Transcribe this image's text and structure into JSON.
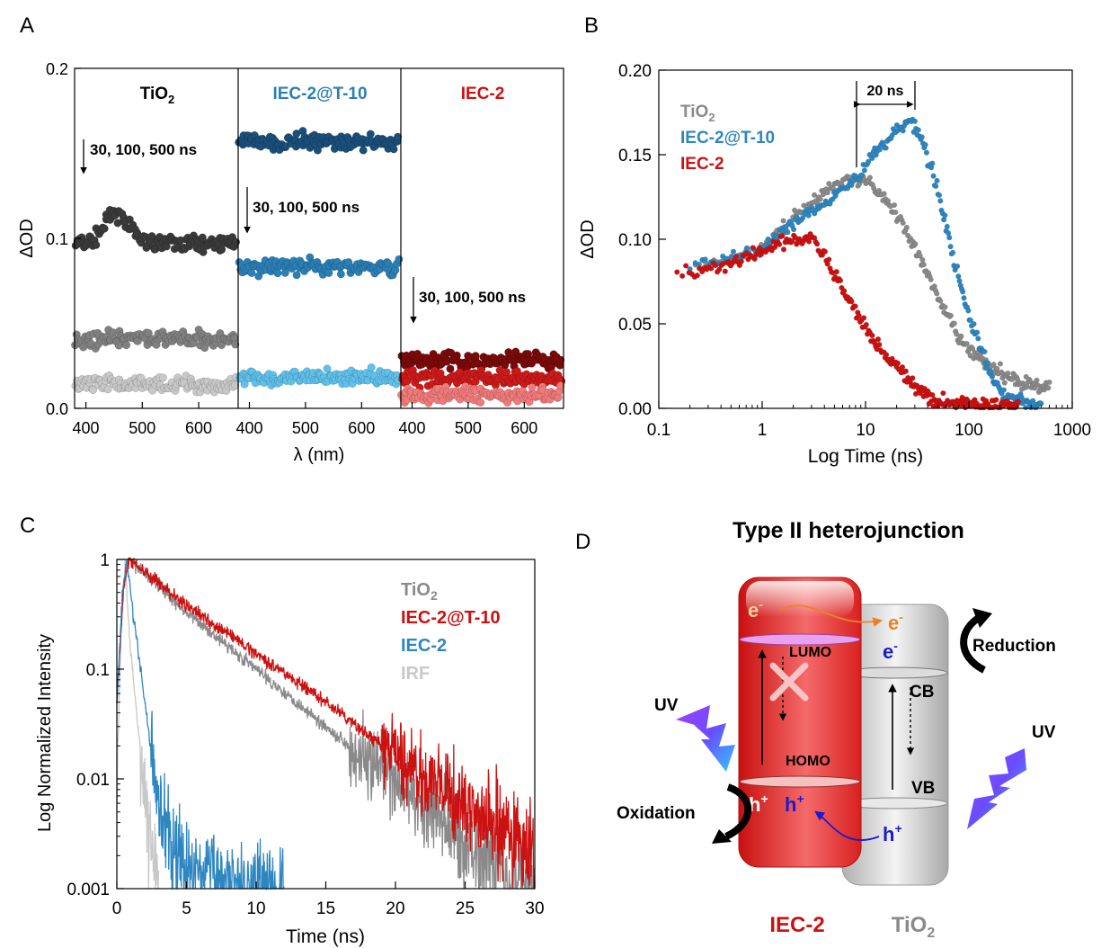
{
  "panel_letters": {
    "a": "A",
    "b": "B",
    "c": "C",
    "d": "D"
  },
  "colors": {
    "tio2_dark": "#3a3a3a",
    "tio2_mid": "#808080",
    "tio2_light": "#c8c8c8",
    "iec_t10_dark": "#1a4f7a",
    "iec_t10_mid": "#2a7fb5",
    "iec_t10_light": "#5fc0ea",
    "iec2_dark": "#7a0a0a",
    "iec2_mid": "#cc1a1a",
    "iec2_light": "#f07a7a",
    "gray": "#8a8a8a",
    "blue": "#2e86c1",
    "red": "#cc1111",
    "irf": "#c8c8c8"
  },
  "chart_data": [
    {
      "id": "A",
      "type": "scatter",
      "xlabel": "λ (nm)",
      "ylabel": "ΔOD",
      "ylim": [
        0,
        0.2
      ],
      "yticks": [
        "0.0",
        "0.1",
        "0.2"
      ],
      "segments": [
        {
          "label": "TiO",
          "label_sub": "2",
          "annotation": "30, 100, 500 ns",
          "xlim": [
            380,
            670
          ],
          "xticks": [
            "400",
            "500",
            "600"
          ],
          "series": [
            {
              "delay": "30 ns",
              "color": "#3a3a3a",
              "level": 0.097
            },
            {
              "delay": "100 ns",
              "color": "#808080",
              "level": 0.041
            },
            {
              "delay": "500 ns",
              "color": "#c8c8c8",
              "level": 0.014
            }
          ]
        },
        {
          "label": "IEC-2@T-10",
          "label_sub": "",
          "annotation": "30, 100, 500 ns",
          "xlim": [
            380,
            670
          ],
          "xticks": [
            "400",
            "500",
            "600"
          ],
          "series": [
            {
              "delay": "30 ns",
              "color": "#1a4f7a",
              "level": 0.157
            },
            {
              "delay": "100 ns",
              "color": "#2a7fb5",
              "level": 0.083
            },
            {
              "delay": "500 ns",
              "color": "#5fc0ea",
              "level": 0.018
            }
          ]
        },
        {
          "label": "IEC-2",
          "label_sub": "",
          "annotation": "30, 100, 500 ns",
          "xlim": [
            380,
            670
          ],
          "xticks": [
            "400",
            "500",
            "600"
          ],
          "series": [
            {
              "delay": "30 ns",
              "color": "#7a0a0a",
              "level": 0.028
            },
            {
              "delay": "100 ns",
              "color": "#cc1a1a",
              "level": 0.018
            },
            {
              "delay": "500 ns",
              "color": "#f07a7a",
              "level": 0.008
            }
          ]
        }
      ]
    },
    {
      "id": "B",
      "type": "scatter",
      "xscale": "log",
      "xlim": [
        0.1,
        1000
      ],
      "xticks": [
        "0.1",
        "1",
        "10",
        "100",
        "1000"
      ],
      "ylim": [
        0,
        0.2
      ],
      "yticks": [
        "0.00",
        "0.05",
        "0.10",
        "0.15",
        "0.20"
      ],
      "xlabel": "Log Time (ns)",
      "ylabel": "ΔOD",
      "annotation": "20 ns",
      "annotation_range": [
        8,
        28
      ],
      "legend": [
        {
          "name": "TiO",
          "sub": "2",
          "color": "#8a8a8a"
        },
        {
          "name": "IEC-2@T-10",
          "sub": "",
          "color": "#2e86c1"
        },
        {
          "name": "IEC-2",
          "sub": "",
          "color": "#cc1111"
        }
      ],
      "series": [
        {
          "name": "TiO2",
          "color": "#8a8a8a",
          "points": [
            [
              0.2,
              0.083
            ],
            [
              0.5,
              0.088
            ],
            [
              1,
              0.095
            ],
            [
              2,
              0.112
            ],
            [
              4,
              0.128
            ],
            [
              6,
              0.134
            ],
            [
              8,
              0.136
            ],
            [
              10,
              0.135
            ],
            [
              15,
              0.125
            ],
            [
              20,
              0.115
            ],
            [
              30,
              0.095
            ],
            [
              50,
              0.065
            ],
            [
              80,
              0.042
            ],
            [
              100,
              0.035
            ],
            [
              150,
              0.025
            ],
            [
              300,
              0.016
            ],
            [
              600,
              0.012
            ]
          ]
        },
        {
          "name": "IEC-2@T-10",
          "color": "#2e86c1",
          "points": [
            [
              0.2,
              0.084
            ],
            [
              0.5,
              0.088
            ],
            [
              1,
              0.095
            ],
            [
              2,
              0.11
            ],
            [
              4,
              0.122
            ],
            [
              6,
              0.13
            ],
            [
              8,
              0.135
            ],
            [
              12,
              0.15
            ],
            [
              20,
              0.165
            ],
            [
              28,
              0.17
            ],
            [
              35,
              0.16
            ],
            [
              50,
              0.13
            ],
            [
              70,
              0.09
            ],
            [
              100,
              0.055
            ],
            [
              150,
              0.025
            ],
            [
              200,
              0.01
            ],
            [
              300,
              0.004
            ],
            [
              500,
              0.002
            ]
          ]
        },
        {
          "name": "IEC-2",
          "color": "#cc1111",
          "points": [
            [
              0.15,
              0.08
            ],
            [
              0.3,
              0.082
            ],
            [
              0.6,
              0.087
            ],
            [
              1,
              0.093
            ],
            [
              2,
              0.1
            ],
            [
              3,
              0.1
            ],
            [
              4,
              0.09
            ],
            [
              6,
              0.07
            ],
            [
              8,
              0.058
            ],
            [
              12,
              0.04
            ],
            [
              20,
              0.025
            ],
            [
              30,
              0.012
            ],
            [
              50,
              0.004
            ],
            [
              80,
              0.003
            ],
            [
              150,
              0.002
            ],
            [
              300,
              0.001
            ]
          ]
        }
      ]
    },
    {
      "id": "C",
      "type": "line",
      "yscale": "log",
      "xlim": [
        0,
        30
      ],
      "ylim": [
        0.001,
        1
      ],
      "xticks": [
        "0",
        "5",
        "10",
        "15",
        "20",
        "25",
        "30"
      ],
      "yticks": [
        "0.001",
        "0.01",
        "0.1",
        "1"
      ],
      "xlabel": "Time (ns)",
      "ylabel": "Log Normalized Intensity",
      "legend": [
        {
          "name": "TiO",
          "sub": "2",
          "color": "#8a8a8a"
        },
        {
          "name": "IEC-2@T-10",
          "sub": "",
          "color": "#cc1111"
        },
        {
          "name": "IEC-2",
          "sub": "",
          "color": "#2e86c1"
        },
        {
          "name": "IRF",
          "sub": "",
          "color": "#c8c8c8"
        }
      ],
      "series": [
        {
          "name": "TiO2",
          "color": "#8a8a8a",
          "points": [
            [
              0,
              0.05
            ],
            [
              0.5,
              0.6
            ],
            [
              0.9,
              1
            ],
            [
              5,
              0.33
            ],
            [
              10,
              0.1
            ],
            [
              15,
              0.03
            ],
            [
              20,
              0.009
            ],
            [
              25,
              0.0028
            ],
            [
              30,
              0.001
            ]
          ]
        },
        {
          "name": "IEC-2@T-10",
          "color": "#cc1111",
          "points": [
            [
              0,
              0.05
            ],
            [
              0.5,
              0.6
            ],
            [
              0.9,
              1
            ],
            [
              5,
              0.38
            ],
            [
              10,
              0.14
            ],
            [
              15,
              0.05
            ],
            [
              20,
              0.016
            ],
            [
              25,
              0.0056
            ],
            [
              30,
              0.002
            ]
          ]
        },
        {
          "name": "IEC-2",
          "color": "#2e86c1",
          "points": [
            [
              0,
              0.05
            ],
            [
              0.4,
              0.5
            ],
            [
              0.7,
              1
            ],
            [
              1.2,
              0.3
            ],
            [
              2,
              0.05
            ],
            [
              3,
              0.006
            ],
            [
              4,
              0.002
            ],
            [
              5,
              0.0015
            ],
            [
              8,
              0.0012
            ],
            [
              12,
              0.001
            ]
          ]
        },
        {
          "name": "IRF",
          "color": "#c8c8c8",
          "points": [
            [
              0,
              0.01
            ],
            [
              0.3,
              0.2
            ],
            [
              0.6,
              0.9
            ],
            [
              0.9,
              0.2
            ],
            [
              1.5,
              0.03
            ],
            [
              2,
              0.008
            ],
            [
              2.5,
              0.002
            ],
            [
              3,
              0.001
            ]
          ]
        }
      ]
    }
  ],
  "diagram": {
    "title": "Type II heterojunction",
    "electron": "e",
    "electron_sup": "-",
    "hole": "h",
    "hole_sup": "+",
    "lumo": "LUMO",
    "homo": "HOMO",
    "cb": "CB",
    "vb": "VB",
    "uv_left": "UV",
    "uv_right": "UV",
    "reduction": "Reduction",
    "oxidation": "Oxidation",
    "label_left": "IEC-2",
    "label_right_main": "TiO",
    "label_right_sub": "2"
  }
}
